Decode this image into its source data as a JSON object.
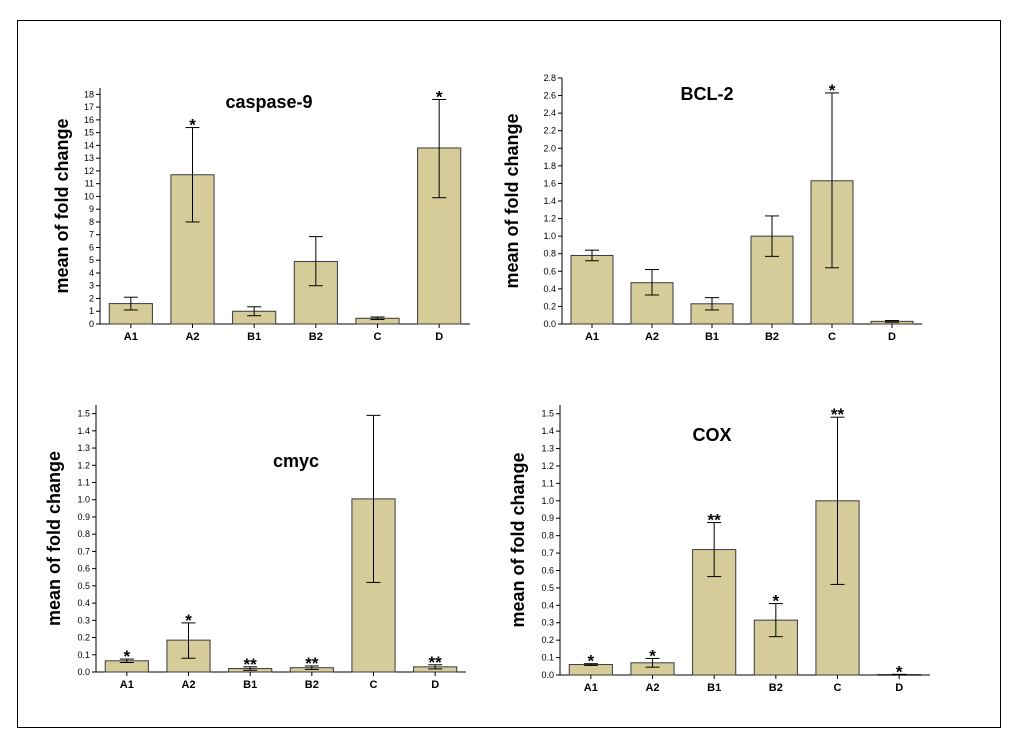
{
  "colors": {
    "bar_fill": "#d6cc9a",
    "bar_stroke": "#3a3a3a",
    "axis": "#000000"
  },
  "chart_data": [
    {
      "type": "bar",
      "title": "caspase-9",
      "ylabel": "mean of fold change",
      "categories": [
        "A1",
        "A2",
        "B1",
        "B2",
        "C",
        "D"
      ],
      "values": [
        1.6,
        11.7,
        1.0,
        4.9,
        0.45,
        13.8
      ],
      "error_low": [
        1.1,
        8.0,
        0.65,
        3.0,
        0.35,
        9.9
      ],
      "error_high": [
        2.1,
        15.4,
        1.35,
        6.85,
        0.55,
        17.6
      ],
      "significance": [
        "",
        "*",
        "",
        "",
        "",
        "*"
      ],
      "ylim": [
        0,
        18.5
      ],
      "yticks": [
        0,
        1,
        2,
        3,
        4,
        5,
        6,
        7,
        8,
        9,
        10,
        11,
        12,
        13,
        14,
        15,
        16,
        17,
        18
      ],
      "ytick_labels": [
        "0",
        "1",
        "2",
        "3",
        "4",
        "5",
        "6",
        "7",
        "8",
        "9",
        "10",
        "11",
        "12",
        "13",
        "14",
        "15",
        "16",
        "17",
        "18"
      ]
    },
    {
      "type": "bar",
      "title": "BCL-2",
      "ylabel": "mean of fold change",
      "categories": [
        "A1",
        "A2",
        "B1",
        "B2",
        "C",
        "D"
      ],
      "values": [
        0.78,
        0.47,
        0.23,
        1.0,
        1.63,
        0.03
      ],
      "error_low": [
        0.72,
        0.33,
        0.16,
        0.77,
        0.64,
        0.02
      ],
      "error_high": [
        0.84,
        0.62,
        0.3,
        1.23,
        2.63,
        0.04
      ],
      "significance": [
        "",
        "",
        "",
        "",
        "*",
        ""
      ],
      "ylim": [
        0,
        2.8
      ],
      "yticks": [
        0,
        0.2,
        0.4,
        0.6,
        0.8,
        1.0,
        1.2,
        1.4,
        1.6,
        1.8,
        2.0,
        2.2,
        2.4,
        2.6,
        2.8
      ],
      "ytick_labels": [
        "0.0",
        "0.2",
        "0.4",
        "0.6",
        "0.8",
        "1.0",
        "1.2",
        "1.4",
        "1.6",
        "1.8",
        "2.0",
        "2.2",
        "2.4",
        "2.6",
        "2.8"
      ]
    },
    {
      "type": "bar",
      "title": "cmyc",
      "ylabel": "mean of fold change",
      "categories": [
        "A1",
        "A2",
        "B1",
        "B2",
        "C",
        "D"
      ],
      "values": [
        0.065,
        0.185,
        0.02,
        0.025,
        1.005,
        0.03
      ],
      "error_low": [
        0.055,
        0.08,
        0.01,
        0.015,
        0.52,
        0.018
      ],
      "error_high": [
        0.075,
        0.285,
        0.03,
        0.035,
        1.49,
        0.042
      ],
      "significance": [
        "*",
        "*",
        "**",
        "**",
        "",
        "**"
      ],
      "ylim": [
        0,
        1.55
      ],
      "yticks": [
        0,
        0.1,
        0.2,
        0.3,
        0.4,
        0.5,
        0.6,
        0.7,
        0.8,
        0.9,
        1.0,
        1.1,
        1.2,
        1.3,
        1.4,
        1.5
      ],
      "ytick_labels": [
        "0.0",
        "0.1",
        "0.2",
        "0.3",
        "0.4",
        "0.5",
        "0.6",
        "0.7",
        "0.8",
        "0.9",
        "1.0",
        "1.1",
        "1.2",
        "1.3",
        "1.4",
        "1.5"
      ]
    },
    {
      "type": "bar",
      "title": "COX",
      "ylabel": "mean of fold change",
      "categories": [
        "A1",
        "A2",
        "B1",
        "B2",
        "C",
        "D"
      ],
      "values": [
        0.06,
        0.07,
        0.72,
        0.315,
        1.0,
        0.003
      ],
      "error_low": [
        0.055,
        0.045,
        0.565,
        0.22,
        0.52,
        0.002
      ],
      "error_high": [
        0.065,
        0.095,
        0.875,
        0.41,
        1.48,
        0.004
      ],
      "significance": [
        "*",
        "*",
        "**",
        "*",
        "**",
        "*"
      ],
      "ylim": [
        0,
        1.55
      ],
      "yticks": [
        0,
        0.1,
        0.2,
        0.3,
        0.4,
        0.5,
        0.6,
        0.7,
        0.8,
        0.9,
        1.0,
        1.1,
        1.2,
        1.3,
        1.4,
        1.5
      ],
      "ytick_labels": [
        "0.0",
        "0.1",
        "0.2",
        "0.3",
        "0.4",
        "0.5",
        "0.6",
        "0.7",
        "0.8",
        "0.9",
        "1.0",
        "1.1",
        "1.2",
        "1.3",
        "1.4",
        "1.5"
      ]
    }
  ]
}
